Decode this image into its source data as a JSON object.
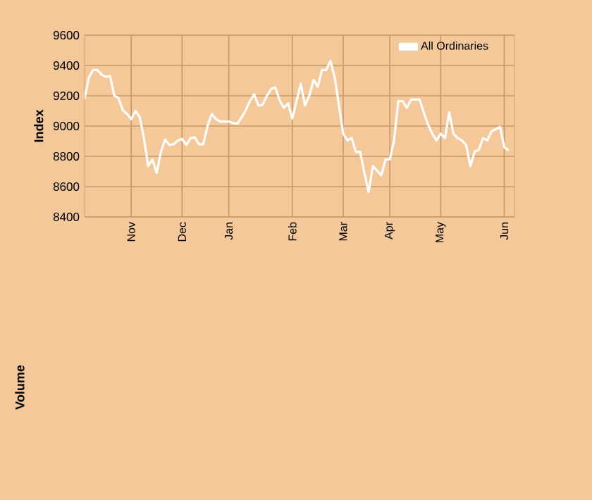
{
  "chart_data": {
    "type": "line",
    "ylabel": "Index",
    "categories": [
      null,
      null,
      null,
      null,
      null,
      null,
      null,
      null,
      null,
      null,
      null,
      "Nov",
      null,
      null,
      null,
      null,
      null,
      null,
      null,
      null,
      null,
      null,
      null,
      "Dec",
      null,
      null,
      null,
      null,
      null,
      null,
      null,
      null,
      null,
      null,
      "Jan",
      null,
      null,
      null,
      null,
      null,
      null,
      null,
      null,
      null,
      null,
      null,
      null,
      null,
      null,
      "Feb",
      null,
      null,
      null,
      null,
      null,
      null,
      null,
      null,
      null,
      null,
      null,
      "Mar",
      null,
      null,
      null,
      null,
      null,
      null,
      null,
      null,
      null,
      null,
      "Apr",
      null,
      null,
      null,
      null,
      null,
      null,
      null,
      null,
      null,
      null,
      null,
      "May",
      null,
      null,
      null,
      null,
      null,
      null,
      null,
      null,
      null,
      null,
      null,
      null,
      null,
      null,
      "Jun",
      null
    ],
    "series": [
      {
        "name": "All Ordinaries",
        "color": "#ffffff",
        "values": [
          9180,
          9320,
          9370,
          9370,
          9340,
          9325,
          9330,
          9200,
          9185,
          9105,
          9080,
          9045,
          9100,
          9060,
          8920,
          8735,
          8780,
          8690,
          8830,
          8910,
          8875,
          8880,
          8905,
          8915,
          8875,
          8920,
          8925,
          8880,
          8880,
          9000,
          9080,
          9045,
          9030,
          9030,
          9030,
          9020,
          9015,
          9055,
          9105,
          9165,
          9210,
          9135,
          9140,
          9200,
          9245,
          9255,
          9170,
          9120,
          9150,
          9050,
          9165,
          9280,
          9135,
          9200,
          9305,
          9260,
          9370,
          9370,
          9430,
          9320,
          9135,
          8950,
          8905,
          8920,
          8830,
          8830,
          8690,
          8565,
          8735,
          8705,
          8675,
          8780,
          8780,
          8905,
          9165,
          9165,
          9120,
          9175,
          9175,
          9175,
          9090,
          9010,
          8950,
          8905,
          8950,
          8920,
          9090,
          8950,
          8920,
          8905,
          8875,
          8735,
          8830,
          8845,
          8920,
          8905,
          8965,
          8980,
          8995,
          8860,
          8840
        ]
      }
    ],
    "ylim": [
      8400,
      9600
    ],
    "yticks": [
      8400,
      8600,
      8800,
      9000,
      9200,
      9400,
      9600
    ],
    "grid": true,
    "legend": "top right",
    "marker": "none",
    "line_style": "solid",
    "annotations": [
      "Volume"
    ]
  }
}
